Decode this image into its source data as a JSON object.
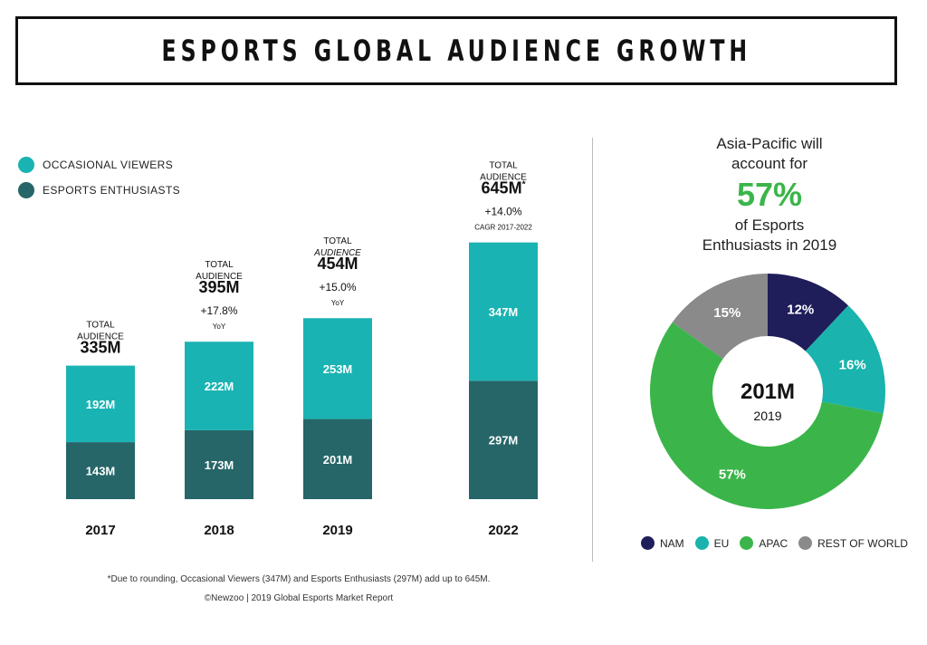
{
  "title": "ESPORTS GLOBAL AUDIENCE GROWTH",
  "legend": [
    {
      "label": "OCCASIONAL VIEWERS",
      "color": "#1ab3b3"
    },
    {
      "label": "ESPORTS ENTHUSIASTS",
      "color": "#266668"
    }
  ],
  "right_panel": {
    "line1": "Asia-Pacific will",
    "line2": "account for",
    "percent": "57%",
    "line3": "of Esports",
    "line4": "Enthusiasts in 2019"
  },
  "footnote": "*Due to rounding, Occasional Viewers (347M) and Esports Enthusiasts (297M) add up to 645M.",
  "source": "©Newzoo | 2019 Global Esports Market Report",
  "chart_data": [
    {
      "type": "bar",
      "stacked": true,
      "categories": [
        "2017",
        "2018",
        "2019",
        "2022"
      ],
      "series": [
        {
          "name": "ESPORTS ENTHUSIASTS",
          "values": [
            143,
            173,
            201,
            297
          ],
          "labels": [
            "143M",
            "173M",
            "201M",
            "297M"
          ],
          "color": "#266668"
        },
        {
          "name": "OCCASIONAL VIEWERS",
          "values": [
            192,
            222,
            253,
            347
          ],
          "labels": [
            "192M",
            "222M",
            "253M",
            "347M"
          ],
          "color": "#1ab3b3"
        }
      ],
      "totals": [
        {
          "lines": [
            "TOTAL",
            "AUDIENCE"
          ],
          "italic_audience": false,
          "value": "335M",
          "growth": "",
          "growth_label": ""
        },
        {
          "lines": [
            "TOTAL",
            "AUDIENCE"
          ],
          "italic_audience": false,
          "value": "395M",
          "growth": "+17.8%",
          "growth_label": "YoY"
        },
        {
          "lines": [
            "TOTAL",
            "AUDIENCE"
          ],
          "italic_audience": true,
          "value": "454M",
          "growth": "+15.0%",
          "growth_label": "YoY"
        },
        {
          "lines": [
            "TOTAL",
            "AUDIENCE"
          ],
          "italic_audience": false,
          "value": "645M",
          "value_marker": "*",
          "growth": "+14.0%",
          "growth_label": "CAGR 2017-2022"
        }
      ],
      "legend_position": "top-left",
      "grid": false
    },
    {
      "type": "pie",
      "donut": true,
      "center_value": "201M",
      "center_label": "2019",
      "slices": [
        {
          "name": "NAM",
          "value": 12,
          "label": "12%",
          "color": "#1f1d5a"
        },
        {
          "name": "EU",
          "value": 16,
          "label": "16%",
          "color": "#1ab3ad"
        },
        {
          "name": "APAC",
          "value": 57,
          "label": "57%",
          "color": "#3bb54a"
        },
        {
          "name": "REST OF WORLD",
          "value": 15,
          "label": "15%",
          "color": "#8a8a8a"
        }
      ],
      "legend_position": "bottom"
    }
  ]
}
